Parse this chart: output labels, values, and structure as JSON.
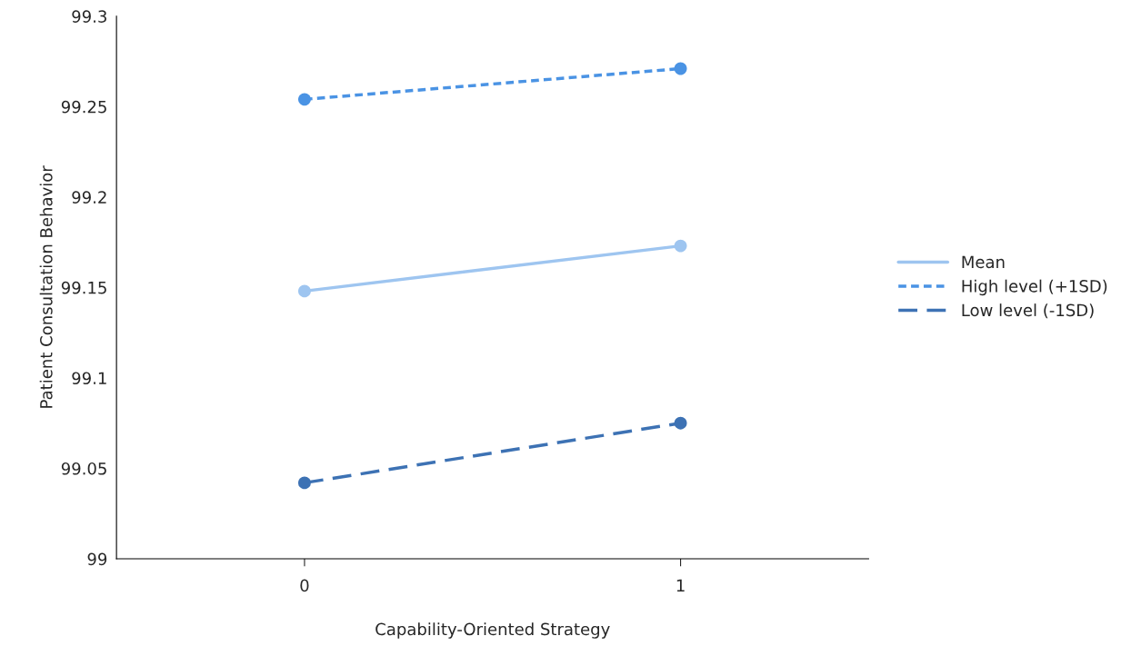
{
  "chart_data": {
    "type": "line",
    "xlabel": "Capability-Oriented Strategy",
    "ylabel": "Patient Consultation Behavior",
    "categories": [
      "0",
      "1"
    ],
    "series": [
      {
        "name": "Mean",
        "color": "#9ec5f0",
        "values": [
          99.148,
          99.173
        ],
        "line_style": "solid"
      },
      {
        "name": "High level (+1SD)",
        "color": "#4a93e4",
        "values": [
          99.254,
          99.271
        ],
        "line_style": "dotted"
      },
      {
        "name": "Low level (-1SD)",
        "color": "#3d72b4",
        "values": [
          99.042,
          99.075
        ],
        "line_style": "dashed"
      }
    ],
    "ylim": [
      99,
      99.3
    ],
    "yticks": [
      99,
      99.05,
      99.1,
      99.15,
      99.2,
      99.25,
      99.3
    ],
    "marker": "circle",
    "legend": "right",
    "grid": false
  }
}
